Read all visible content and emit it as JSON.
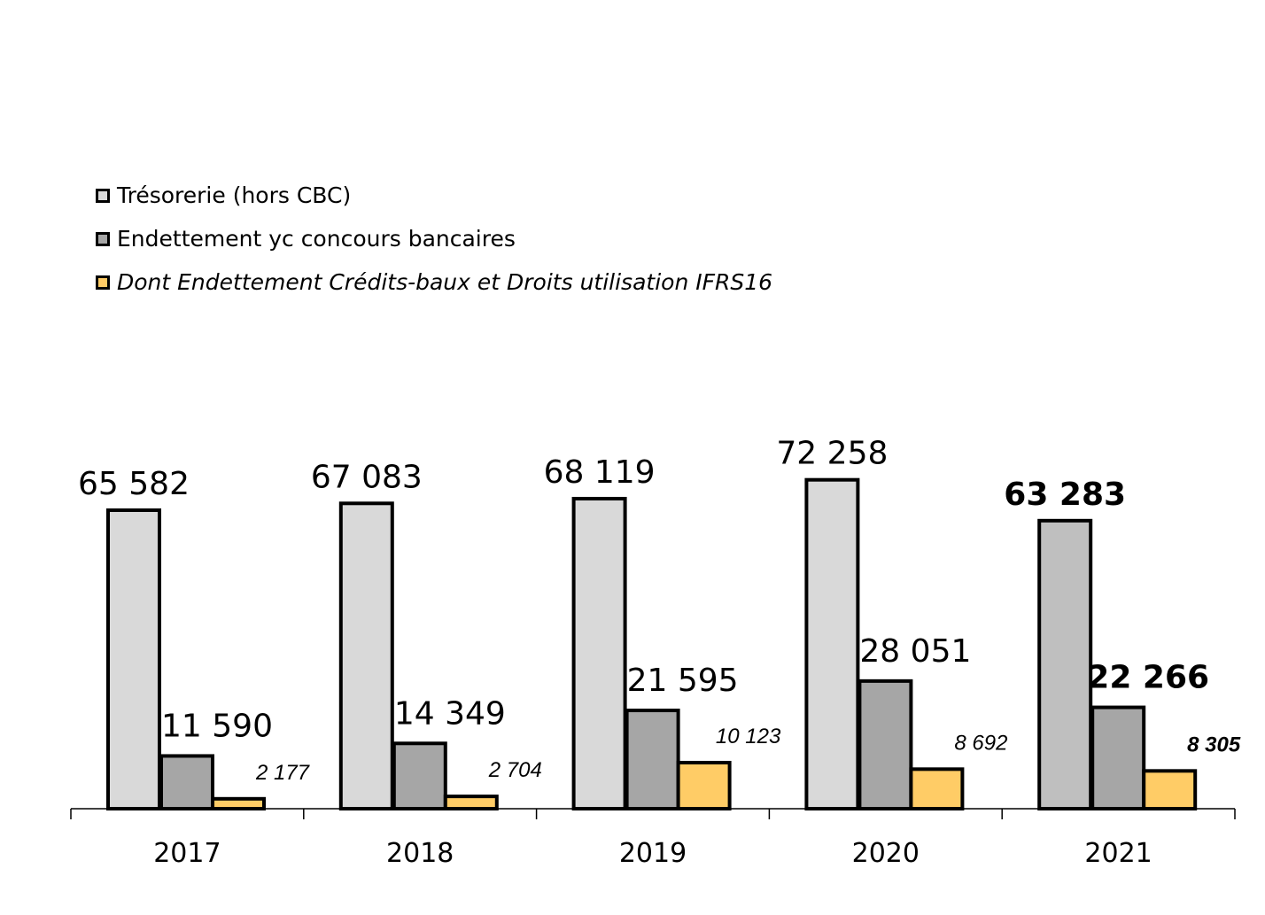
{
  "chart_data": {
    "type": "bar",
    "categories": [
      "2017",
      "2018",
      "2019",
      "2020",
      "2021"
    ],
    "series": [
      {
        "name": "Trésorerie (hors CBC)",
        "values": [
          65582,
          67083,
          68119,
          72258,
          63283
        ],
        "labels": [
          "65 582",
          "67 083",
          "68 119",
          "72 258",
          "63 283"
        ],
        "color": "#d9d9d9",
        "last_color": "#bfbfbf"
      },
      {
        "name": "Endettement yc concours bancaires",
        "values": [
          11590,
          14349,
          21595,
          28051,
          22266
        ],
        "labels": [
          "11 590",
          "14 349",
          "21 595",
          "28 051",
          "22 266"
        ],
        "color": "#a6a6a6"
      },
      {
        "name": "Dont Endettement Crédits-baux et Droits utilisation IFRS16",
        "values": [
          2177,
          2704,
          10123,
          8692,
          8305
        ],
        "labels": [
          "2 177",
          "2 704",
          "10 123",
          "8 692",
          "8 305"
        ],
        "color": "#ffcc66"
      }
    ],
    "ylim": [
      0,
      80000
    ],
    "grid": false,
    "legend_position": "top-left",
    "highlight_last_category": true
  }
}
